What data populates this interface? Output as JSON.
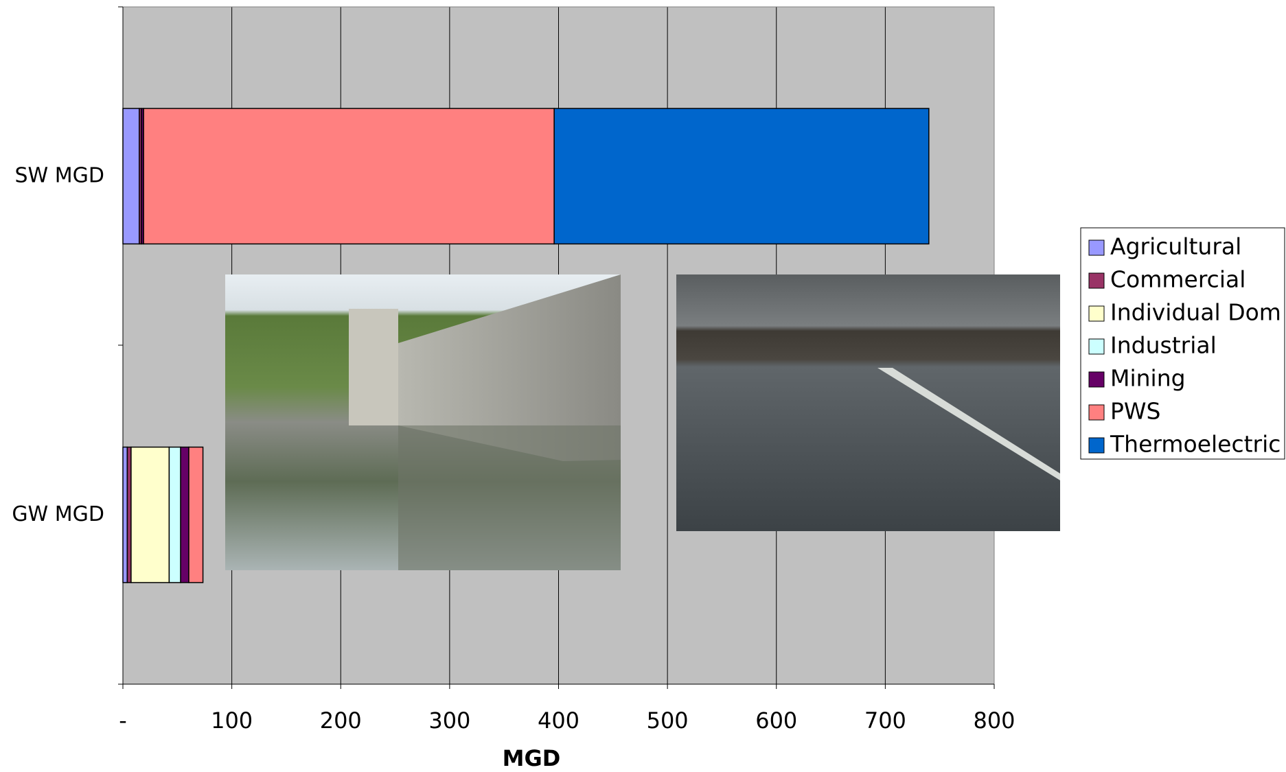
{
  "chart_data": {
    "type": "stacked-barh",
    "categories": [
      "SW MGD",
      "GW MGD"
    ],
    "series": [
      {
        "name": "Agricultural",
        "color": "#9999ff",
        "values": [
          15,
          4
        ]
      },
      {
        "name": "Commercial",
        "color": "#993366",
        "values": [
          2,
          3.5
        ]
      },
      {
        "name": "Individual Dom",
        "color": "#ffffcc",
        "values": [
          0,
          35
        ]
      },
      {
        "name": "Industrial",
        "color": "#ccffff",
        "values": [
          0,
          10.5
        ]
      },
      {
        "name": "Mining",
        "color": "#660066",
        "values": [
          2,
          7.5
        ]
      },
      {
        "name": "PWS",
        "color": "#ff8080",
        "values": [
          377,
          13
        ]
      },
      {
        "name": "Thermoelectric",
        "color": "#0066cc",
        "values": [
          344,
          0
        ]
      }
    ],
    "xlabel": "MGD",
    "xlim": [
      0,
      800
    ],
    "xticks": [
      {
        "value": 0,
        "label": "-"
      },
      100,
      200,
      300,
      400,
      500,
      600,
      700,
      800
    ],
    "grid": true,
    "legend": "right"
  }
}
